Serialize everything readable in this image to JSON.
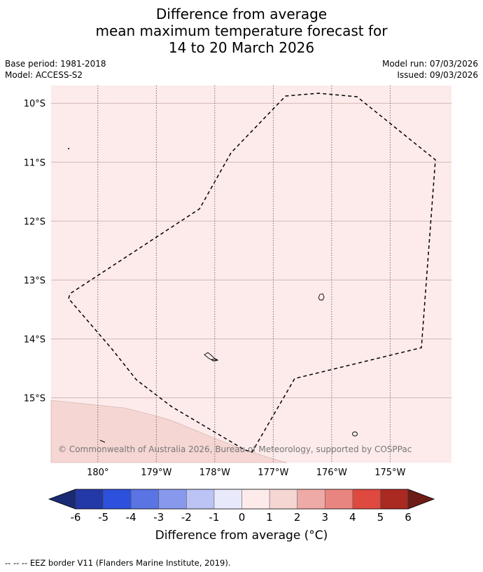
{
  "title": {
    "line1": "Difference from average",
    "line2": "mean maximum temperature forecast for",
    "line3": "14 to 20 March 2026"
  },
  "meta": {
    "base_period": "Base period: 1981-2018",
    "model": "Model: ACCESS-S2",
    "model_run": "Model run: 07/03/2026",
    "issued": "Issued: 09/03/2026"
  },
  "map": {
    "lon_range": [
      -180.8,
      -173.95
    ],
    "lat_range": [
      -16.1,
      -9.7
    ],
    "lon_ticks": [
      {
        "value": 180,
        "label": "180°"
      },
      {
        "value": -179,
        "label": "179°W"
      },
      {
        "value": -178,
        "label": "178°W"
      },
      {
        "value": -177,
        "label": "177°W"
      },
      {
        "value": -176,
        "label": "176°W"
      },
      {
        "value": -175,
        "label": "175°W"
      }
    ],
    "lat_ticks": [
      {
        "value": -10,
        "label": "10°S"
      },
      {
        "value": -11,
        "label": "11°S"
      },
      {
        "value": -12,
        "label": "12°S"
      },
      {
        "value": -13,
        "label": "13°S"
      },
      {
        "value": -14,
        "label": "14°S"
      },
      {
        "value": -15,
        "label": "15°S"
      }
    ],
    "background_color": "#fcebea",
    "warm_region_color": "#f5d6d3",
    "copyright": "© Commonwealth of Australia 2026, Bureau of Meteorology, supported by COSPPac"
  },
  "colorbar": {
    "tick_labels": [
      "-6",
      "-5",
      "-4",
      "-3",
      "-2",
      "-1",
      "0",
      "1",
      "2",
      "3",
      "4",
      "5",
      "6"
    ],
    "under_color": "#1a2b74",
    "over_color": "#6e1c16",
    "colors": [
      "#2339a8",
      "#2d51dc",
      "#5a74e3",
      "#8898ec",
      "#bcc4f5",
      "#e8eafc",
      "#fcebea",
      "#f5d6d3",
      "#eeaaa6",
      "#e98580",
      "#de4a3f",
      "#aa2921"
    ],
    "label": "Difference from average (°C)"
  },
  "footer": {
    "legend": "--  --  -- EEZ border V11 (Flanders Marine Institute, 2019)."
  }
}
